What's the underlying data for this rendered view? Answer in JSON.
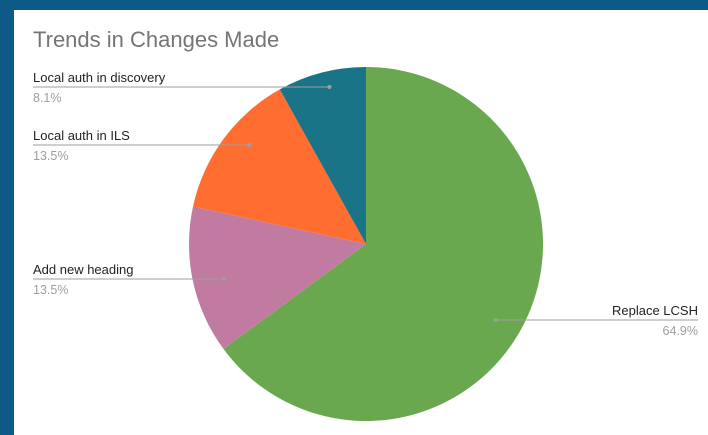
{
  "chart_data": {
    "type": "pie",
    "title": "Trends in Changes Made",
    "slices": [
      {
        "label": "Replace LCSH",
        "value": 64.9,
        "value_label": "64.9%",
        "color": "#6aa84f"
      },
      {
        "label": "Add new heading",
        "value": 13.5,
        "value_label": "13.5%",
        "color": "#c27ba0"
      },
      {
        "label": "Local auth in ILS",
        "value": 13.5,
        "value_label": "13.5%",
        "color": "#ff6d31"
      },
      {
        "label": "Local auth in discovery",
        "value": 8.1,
        "value_label": "8.1%",
        "color": "#1a7487"
      }
    ],
    "start_angle_deg": 0,
    "direction": "clockwise",
    "legend": "none",
    "labels": "outside with leader lines"
  }
}
